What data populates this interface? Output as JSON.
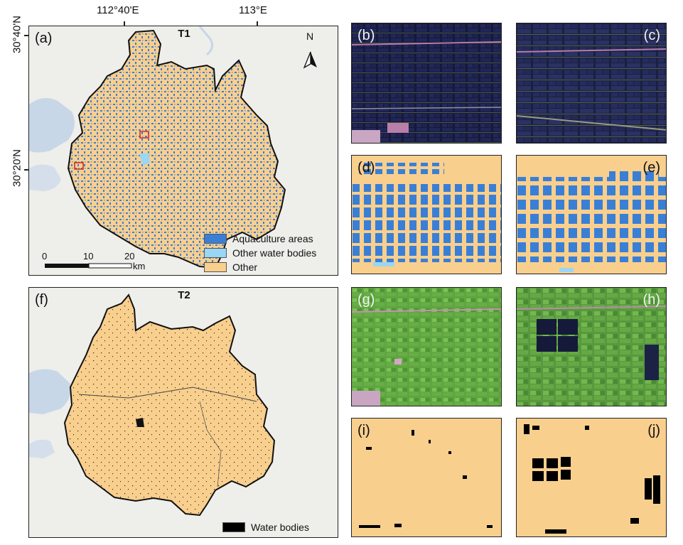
{
  "axes": {
    "top_labels": [
      "112°40'E",
      "113°E"
    ],
    "left_labels": [
      "30°40'N",
      "30°20'N"
    ]
  },
  "panel_labels": {
    "a": "(a)",
    "b": "(b)",
    "c": "(c)",
    "d": "(d)",
    "e": "(e)",
    "f": "(f)",
    "g": "(g)",
    "h": "(h)",
    "i": "(i)",
    "j": "(j)"
  },
  "titles": {
    "t1": "T1",
    "t2": "T2"
  },
  "north": "N",
  "legend_t1": [
    {
      "label": "Aquaculture areas",
      "color": "#3a7fd6"
    },
    {
      "label": "Other water bodies",
      "color": "#9ad6f5"
    },
    {
      "label": "Other",
      "color": "#f9cf8e"
    }
  ],
  "legend_t2": [
    {
      "label": "Water bodies",
      "color": "#000000"
    }
  ],
  "scalebar": {
    "ticks": [
      "0",
      "10",
      "20"
    ],
    "unit": "km"
  },
  "colors": {
    "land": "#f9cf8e",
    "aquaculture": "#3a7fd6",
    "other_water": "#9ad6f5",
    "basemap": "#eeeeea",
    "basemap_water": "#c7d7e8",
    "box": "#d0302a"
  }
}
